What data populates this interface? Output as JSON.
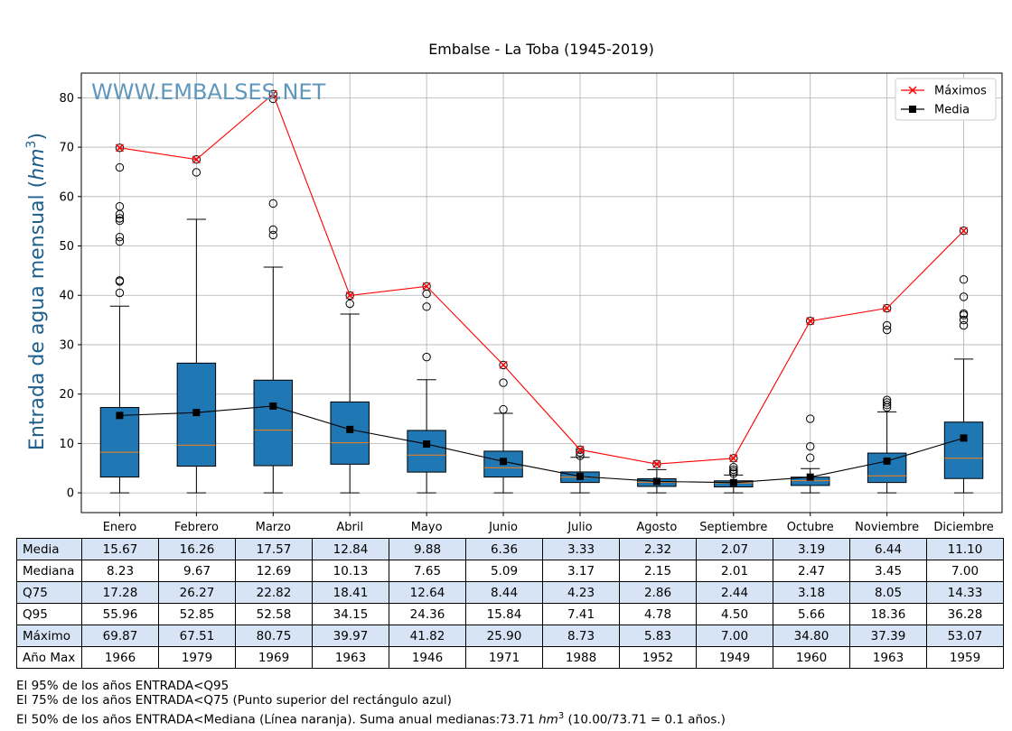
{
  "chart_data": {
    "type": "box",
    "title": "Embalse - La Toba (1945-2019)",
    "watermark": "WWW.EMBALSES.NET",
    "ylabel_text": "Entrada de agua mensual (",
    "ylabel_unit_base": "hm",
    "ylabel_unit_exp": "3",
    "ylabel_close": ")",
    "ylim": [
      -4,
      85
    ],
    "yticks": [
      0,
      10,
      20,
      30,
      40,
      50,
      60,
      70,
      80
    ],
    "grid": true,
    "legend_position": "top-right",
    "categories": [
      "Enero",
      "Febrero",
      "Marzo",
      "Abril",
      "Mayo",
      "Junio",
      "Julio",
      "Agosto",
      "Septiembre",
      "Octubre",
      "Noviembre",
      "Diciembre"
    ],
    "boxes": [
      {
        "whisker_low": 0,
        "q1": 3.2,
        "median": 8.23,
        "q3": 17.28,
        "whisker_high": 37.8,
        "outliers": [
          40.5,
          42.8,
          43.0,
          50.9,
          51.8,
          55.1,
          55.6,
          56.4,
          58.0,
          65.9,
          69.87
        ]
      },
      {
        "whisker_low": 0,
        "q1": 5.4,
        "median": 9.67,
        "q3": 26.27,
        "whisker_high": 55.4,
        "outliers": [
          64.9,
          67.51
        ]
      },
      {
        "whisker_low": 0,
        "q1": 5.5,
        "median": 12.69,
        "q3": 22.82,
        "whisker_high": 45.7,
        "outliers": [
          52.2,
          53.3,
          58.6,
          79.8,
          80.75
        ]
      },
      {
        "whisker_low": 0,
        "q1": 5.8,
        "median": 10.13,
        "q3": 18.41,
        "whisker_high": 36.2,
        "outliers": [
          38.3,
          39.97
        ]
      },
      {
        "whisker_low": 0,
        "q1": 4.2,
        "median": 7.65,
        "q3": 12.64,
        "whisker_high": 22.9,
        "outliers": [
          27.5,
          37.7,
          40.3,
          41.82
        ]
      },
      {
        "whisker_low": 0,
        "q1": 3.2,
        "median": 5.09,
        "q3": 8.44,
        "whisker_high": 16.1,
        "outliers": [
          16.9,
          22.3,
          25.9
        ]
      },
      {
        "whisker_low": 0,
        "q1": 2.1,
        "median": 3.17,
        "q3": 4.23,
        "whisker_high": 7.2,
        "outliers": [
          7.5,
          8.2,
          8.73
        ]
      },
      {
        "whisker_low": 0,
        "q1": 1.3,
        "median": 2.15,
        "q3": 2.86,
        "whisker_high": 4.7,
        "outliers": [
          5.83
        ]
      },
      {
        "whisker_low": 0,
        "q1": 1.2,
        "median": 2.01,
        "q3": 2.44,
        "whisker_high": 3.6,
        "outliers": [
          3.9,
          4.3,
          4.7,
          5.2,
          7.0
        ]
      },
      {
        "whisker_low": 0,
        "q1": 1.5,
        "median": 2.47,
        "q3": 3.18,
        "whisker_high": 4.9,
        "outliers": [
          7.1,
          9.4,
          15.0,
          34.8
        ]
      },
      {
        "whisker_low": 0,
        "q1": 2.1,
        "median": 3.45,
        "q3": 8.05,
        "whisker_high": 16.4,
        "outliers": [
          17.3,
          17.8,
          18.3,
          18.8,
          33.0,
          33.9,
          37.39
        ]
      },
      {
        "whisker_low": 0,
        "q1": 2.9,
        "median": 7.0,
        "q3": 14.33,
        "whisker_high": 27.1,
        "outliers": [
          33.9,
          35.0,
          36.0,
          36.3,
          39.7,
          43.2,
          53.07
        ]
      }
    ],
    "series": [
      {
        "name": "Máximos",
        "color": "#ff0000",
        "marker": "x",
        "values": [
          69.87,
          67.51,
          80.75,
          39.97,
          41.82,
          25.9,
          8.73,
          5.83,
          7.0,
          34.8,
          37.39,
          53.07
        ]
      },
      {
        "name": "Media",
        "color": "#000000",
        "marker": "square",
        "values": [
          15.67,
          16.26,
          17.57,
          12.84,
          9.88,
          6.36,
          3.33,
          2.32,
          2.07,
          3.19,
          6.44,
          11.1
        ]
      }
    ],
    "colors": {
      "box": "#1f77b4",
      "median": "#ff7f0e",
      "watermark": "#5f97bd",
      "ylabel": "#1f5f8c",
      "table_shade": "#d6e4f5"
    }
  },
  "table": {
    "rows": [
      {
        "label": "Media",
        "shaded": true,
        "values": [
          "15.67",
          "16.26",
          "17.57",
          "12.84",
          "9.88",
          "6.36",
          "3.33",
          "2.32",
          "2.07",
          "3.19",
          "6.44",
          "11.10"
        ]
      },
      {
        "label": "Mediana",
        "shaded": false,
        "values": [
          "8.23",
          "9.67",
          "12.69",
          "10.13",
          "7.65",
          "5.09",
          "3.17",
          "2.15",
          "2.01",
          "2.47",
          "3.45",
          "7.00"
        ]
      },
      {
        "label": "Q75",
        "shaded": true,
        "values": [
          "17.28",
          "26.27",
          "22.82",
          "18.41",
          "12.64",
          "8.44",
          "4.23",
          "2.86",
          "2.44",
          "3.18",
          "8.05",
          "14.33"
        ]
      },
      {
        "label": "Q95",
        "shaded": false,
        "values": [
          "55.96",
          "52.85",
          "52.58",
          "34.15",
          "24.36",
          "15.84",
          "7.41",
          "4.78",
          "4.50",
          "5.66",
          "18.36",
          "36.28"
        ]
      },
      {
        "label": "Máximo",
        "shaded": true,
        "values": [
          "69.87",
          "67.51",
          "80.75",
          "39.97",
          "41.82",
          "25.90",
          "8.73",
          "5.83",
          "7.00",
          "34.80",
          "37.39",
          "53.07"
        ]
      },
      {
        "label": "Año Max",
        "shaded": false,
        "values": [
          "1966",
          "1979",
          "1969",
          "1963",
          "1946",
          "1971",
          "1988",
          "1952",
          "1949",
          "1960",
          "1963",
          "1959"
        ]
      }
    ]
  },
  "notes": {
    "line1": "El 95% de los años ENTRADA<Q95",
    "line2": "El 75% de los años ENTRADA<Q75 (Punto superior del rectángulo azul)",
    "line3_a": "El 50% de los años ENTRADA<Mediana (Línea naranja). Suma anual medianas:73.71 ",
    "line3_unit": "hm",
    "line3_exp": "3",
    "line3_b": " (10.00/73.71 = 0.1 años.)"
  }
}
